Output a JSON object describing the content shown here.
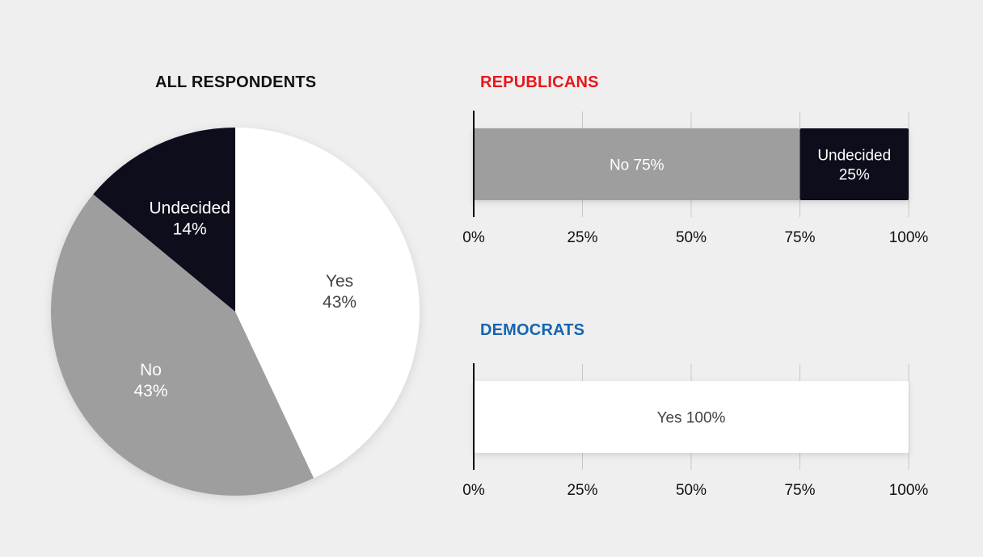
{
  "colors": {
    "background": "#efefef",
    "yes": "#ffffff",
    "no": "#9e9e9e",
    "undecided": "#080c1f",
    "republicans_title": "#e8171b",
    "democrats_title": "#1565b0",
    "grid": "#c8c8c8",
    "baseline": "#000000"
  },
  "chart_data": [
    {
      "type": "pie",
      "title": "ALL RESPONDENTS",
      "slices": [
        {
          "label": "Yes",
          "value": 43,
          "value_label": "43%",
          "color": "#ffffff",
          "text_color": "#444444"
        },
        {
          "label": "No",
          "value": 43,
          "value_label": "43%",
          "color": "#9e9e9e",
          "text_color": "#ffffff"
        },
        {
          "label": "Undecided",
          "value": 14,
          "value_label": "14%",
          "color": "#080c1f",
          "text_color": "#ffffff"
        }
      ]
    },
    {
      "type": "bar",
      "orientation": "horizontal-stacked",
      "title": "REPUBLICANS",
      "title_color": "#e8171b",
      "xlim": [
        0,
        100
      ],
      "ticks": [
        0,
        25,
        50,
        75,
        100
      ],
      "tick_labels": [
        "0%",
        "25%",
        "50%",
        "75%",
        "100%"
      ],
      "grid": true,
      "segments": [
        {
          "label": "No",
          "value": 75,
          "text_lines": [
            "No 75%"
          ],
          "color": "#9e9e9e",
          "text_color": "#ffffff"
        },
        {
          "label": "Undecided",
          "value": 25,
          "text_lines": [
            "Undecided",
            "25%"
          ],
          "color": "#080c1f",
          "text_color": "#ffffff"
        }
      ]
    },
    {
      "type": "bar",
      "orientation": "horizontal-stacked",
      "title": "DEMOCRATS",
      "title_color": "#1565b0",
      "xlim": [
        0,
        100
      ],
      "ticks": [
        0,
        25,
        50,
        75,
        100
      ],
      "tick_labels": [
        "0%",
        "25%",
        "50%",
        "75%",
        "100%"
      ],
      "grid": true,
      "segments": [
        {
          "label": "Yes",
          "value": 100,
          "text_lines": [
            "Yes 100%"
          ],
          "color": "#ffffff",
          "text_color": "#444444"
        }
      ]
    }
  ]
}
